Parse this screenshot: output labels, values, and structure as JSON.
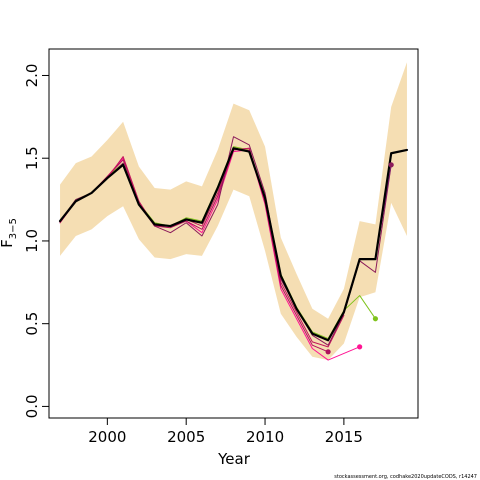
{
  "chart_data": {
    "type": "line",
    "xlabel": "Year",
    "ylabel": "F",
    "ylabel_subscript": "3−5",
    "xlim": [
      1996.3,
      2019.7
    ],
    "ylim": [
      -0.07,
      2.16
    ],
    "xticks": [
      2000,
      2005,
      2010,
      2015
    ],
    "yticks": [
      0.0,
      0.5,
      1.0,
      1.5,
      2.0
    ],
    "xtick_labels": [
      "2000",
      "2005",
      "2010",
      "2015"
    ],
    "ytick_labels": [
      "0.0",
      "0.5",
      "1.0",
      "1.5",
      "2.0"
    ],
    "grid": false,
    "legend": "none",
    "footnote": "stockassessment.org, codhake2020updateCODS, r14247",
    "band": {
      "color": "#f5deb3",
      "x": [
        1997,
        1998,
        1999,
        2000,
        2001,
        2002,
        2003,
        2004,
        2005,
        2006,
        2007,
        2008,
        2009,
        2010,
        2011,
        2012,
        2013,
        2014,
        2015,
        2016,
        2017,
        2018,
        2019
      ],
      "lower": [
        0.91,
        1.03,
        1.07,
        1.15,
        1.21,
        1.01,
        0.9,
        0.89,
        0.92,
        0.91,
        1.09,
        1.31,
        1.27,
        0.94,
        0.56,
        0.42,
        0.3,
        0.28,
        0.38,
        0.66,
        0.69,
        1.23,
        1.03
      ],
      "upper": [
        1.34,
        1.47,
        1.51,
        1.61,
        1.72,
        1.45,
        1.32,
        1.31,
        1.36,
        1.33,
        1.55,
        1.83,
        1.79,
        1.57,
        1.02,
        0.8,
        0.59,
        0.53,
        0.71,
        1.12,
        1.1,
        1.81,
        2.08
      ]
    },
    "series": [
      {
        "color": "#000000",
        "width": 2.2,
        "x": [
          1997,
          1998,
          1999,
          2000,
          2001,
          2002,
          2003,
          2004,
          2005,
          2006,
          2007,
          2008,
          2009,
          2010,
          2011,
          2012,
          2013,
          2014,
          2015,
          2016,
          2017,
          2018,
          2019
        ],
        "values": [
          1.12,
          1.24,
          1.29,
          1.38,
          1.46,
          1.22,
          1.1,
          1.09,
          1.13,
          1.11,
          1.32,
          1.56,
          1.54,
          1.26,
          0.79,
          0.59,
          0.44,
          0.4,
          0.57,
          0.89,
          0.89,
          1.53,
          1.55
        ]
      },
      {
        "color": "#7fc31c",
        "width": 1.0,
        "x": [
          1997,
          1998,
          1999,
          2000,
          2001,
          2002,
          2003,
          2004,
          2005,
          2006,
          2007,
          2008,
          2009,
          2010,
          2011,
          2012,
          2013,
          2014,
          2015,
          2016,
          2017
        ],
        "values": [
          1.12,
          1.25,
          1.29,
          1.39,
          1.47,
          1.23,
          1.11,
          1.09,
          1.14,
          1.12,
          1.33,
          1.57,
          1.55,
          1.27,
          0.8,
          0.6,
          0.45,
          0.41,
          0.58,
          0.67,
          0.53
        ],
        "end_marker": true
      },
      {
        "color": "#ff1493",
        "width": 1.0,
        "x": [
          1997,
          1998,
          1999,
          2000,
          2001,
          2002,
          2003,
          2004,
          2005,
          2006,
          2007,
          2008,
          2009,
          2010,
          2011,
          2012,
          2013,
          2014,
          2015,
          2016
        ],
        "values": [
          1.11,
          1.24,
          1.29,
          1.39,
          1.5,
          1.23,
          1.09,
          1.09,
          1.12,
          1.05,
          1.25,
          1.54,
          1.55,
          1.22,
          0.71,
          0.53,
          0.35,
          0.28,
          0.32,
          0.36
        ],
        "end_marker": true
      },
      {
        "color": "#b0105c",
        "width": 1.0,
        "x": [
          1997,
          1998,
          1999,
          2000,
          2001,
          2002,
          2003,
          2004,
          2005,
          2006,
          2007,
          2008,
          2009,
          2010,
          2011,
          2012,
          2013,
          2014
        ],
        "values": [
          1.11,
          1.24,
          1.29,
          1.39,
          1.49,
          1.24,
          1.09,
          1.08,
          1.12,
          1.07,
          1.27,
          1.55,
          1.56,
          1.23,
          0.73,
          0.55,
          0.37,
          0.33
        ],
        "end_marker": true
      },
      {
        "color": "#c2185b",
        "width": 1.0,
        "x": [
          1997,
          1998,
          1999,
          2000,
          2001,
          2002,
          2003,
          2004,
          2005,
          2006,
          2007,
          2008,
          2009,
          2010,
          2011,
          2012,
          2013,
          2014,
          2015
        ],
        "values": [
          1.11,
          1.24,
          1.29,
          1.38,
          1.51,
          1.24,
          1.09,
          1.09,
          1.13,
          1.09,
          1.29,
          1.55,
          1.56,
          1.24,
          0.75,
          0.57,
          0.39,
          0.36,
          0.55
        ],
        "end_marker": false
      },
      {
        "color": "#8b1a5a",
        "width": 1.0,
        "x": [
          1997,
          1998,
          1999,
          2000,
          2001,
          2002,
          2003,
          2004,
          2005,
          2006,
          2007,
          2008,
          2009,
          2010,
          2011,
          2012,
          2013,
          2014,
          2015,
          2016,
          2017,
          2018
        ],
        "values": [
          1.12,
          1.25,
          1.29,
          1.38,
          1.47,
          1.22,
          1.09,
          1.05,
          1.11,
          1.03,
          1.22,
          1.63,
          1.58,
          1.29,
          0.77,
          0.59,
          0.43,
          0.37,
          0.56,
          0.88,
          0.81,
          1.46
        ],
        "end_marker": true
      },
      {
        "color": "#7a1f6e",
        "width": 1.0,
        "x": [
          1997,
          1998,
          1999,
          2000,
          2001,
          2002,
          2003,
          2004,
          2005,
          2006,
          2007,
          2008,
          2009,
          2010,
          2011,
          2012,
          2013,
          2014,
          2015,
          2016,
          2017,
          2018
        ],
        "values": [
          1.12,
          1.24,
          1.29,
          1.38,
          1.46,
          1.22,
          1.1,
          1.09,
          1.13,
          1.11,
          1.32,
          1.56,
          1.54,
          1.26,
          0.79,
          0.59,
          0.44,
          0.4,
          0.57,
          0.89,
          0.89,
          1.46
        ],
        "end_marker": false
      }
    ],
    "end_marker_colors": {
      "green": "#66cc00",
      "pink": "#ff1493",
      "purple": "#b0008a",
      "magenta": "#cc00cc"
    }
  }
}
